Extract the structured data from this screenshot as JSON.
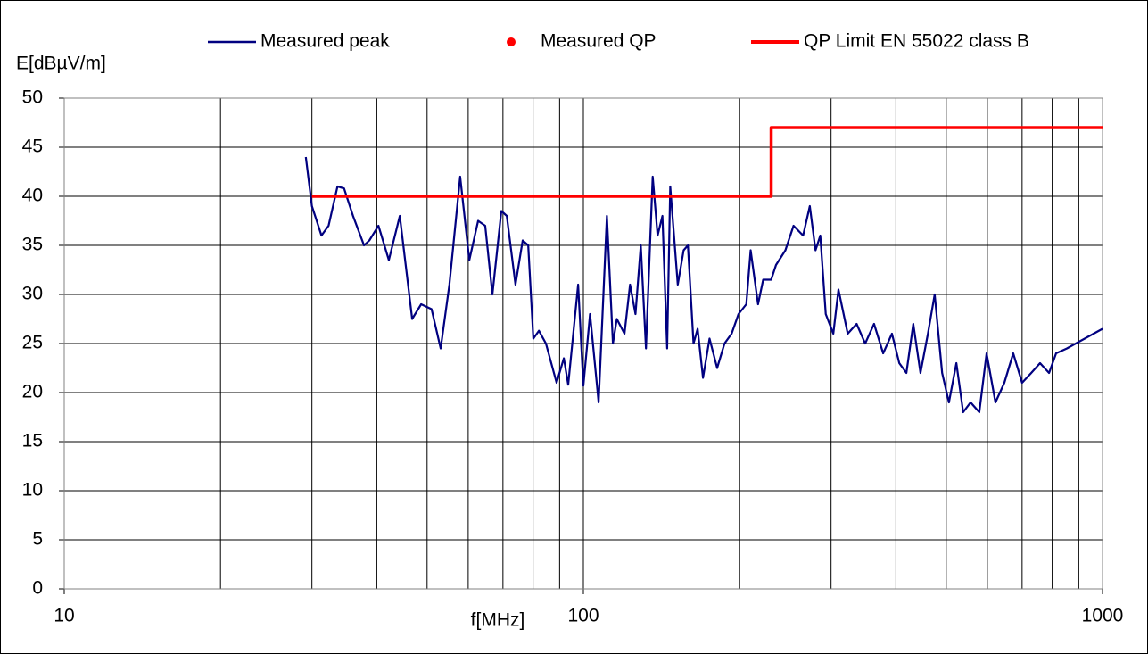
{
  "chart_data": {
    "type": "line",
    "xlabel": "f[MHz]",
    "ylabel": "E[dBµV/m]",
    "xscale": "log",
    "xlim": [
      10,
      1000
    ],
    "xticks": [
      10,
      100,
      1000
    ],
    "minor_grid": true,
    "ylim": [
      0,
      50
    ],
    "yticks": [
      0,
      5,
      10,
      15,
      20,
      25,
      30,
      35,
      40,
      45,
      50
    ],
    "grid": true,
    "legend": "top",
    "series": [
      {
        "name": "Measured peak",
        "color": "#000080",
        "mode": "line",
        "x": [
          29.2,
          30.0,
          31.3,
          32.3,
          33.6,
          34.6,
          36.0,
          37.8,
          38.7,
          40.3,
          42.2,
          44.3,
          46.8,
          48.7,
          51.0,
          53.1,
          55.2,
          57.9,
          60.3,
          62.7,
          64.7,
          66.8,
          69.5,
          71.2,
          74.0,
          76.4,
          78.3,
          80.1,
          82.1,
          84.7,
          88.8,
          91.7,
          93.5,
          97.7,
          100,
          103,
          107,
          111,
          114,
          116,
          120,
          123,
          126,
          129,
          132,
          136,
          139,
          142,
          145,
          147,
          152,
          156,
          159,
          163,
          166,
          170,
          175,
          181,
          187,
          193,
          199,
          206,
          210,
          217,
          222,
          230,
          235,
          245,
          254,
          265,
          273,
          280,
          286,
          293,
          303,
          310,
          323,
          336,
          349,
          363,
          378,
          393,
          406,
          419,
          432,
          446,
          461,
          475,
          491,
          506,
          523,
          539,
          557,
          579,
          598,
          622,
          647,
          673,
          700,
          729,
          758,
          789,
          814,
          854,
          888,
          924,
          961,
          1000
        ],
        "values": [
          44,
          39,
          36,
          37,
          41,
          40.8,
          38,
          35,
          35.5,
          37,
          33.5,
          38,
          27.5,
          29,
          28.5,
          24.5,
          31,
          42,
          33.5,
          37.5,
          37,
          30,
          38.5,
          38,
          31,
          35.5,
          35,
          25.5,
          26.3,
          25,
          21,
          23.5,
          20.8,
          31,
          20.7,
          28,
          19,
          38,
          25,
          27.5,
          26,
          31,
          28,
          35,
          24.5,
          42,
          36,
          38,
          24.5,
          41,
          31,
          34.5,
          35,
          25,
          26.5,
          21.5,
          25.5,
          22.5,
          25,
          26,
          28,
          29,
          34.5,
          29,
          31.5,
          31.5,
          33,
          34.5,
          37,
          36,
          39,
          34.5,
          36,
          28,
          26,
          30.5,
          26,
          27,
          25,
          27,
          24,
          26,
          23,
          22,
          27,
          22,
          26,
          30,
          22,
          19,
          23,
          18,
          19,
          18,
          24,
          19,
          21,
          24,
          21,
          22,
          23,
          22,
          24,
          24.5,
          25,
          25.5,
          26,
          26.5
        ]
      },
      {
        "name": "Measured QP",
        "color": "#ff0000",
        "mode": "markers",
        "x": [],
        "values": []
      },
      {
        "name": "QP Limit EN 55022 class B",
        "color": "#ff0000",
        "mode": "line",
        "x": [
          30,
          230,
          230,
          1000
        ],
        "values": [
          40,
          40,
          47,
          47
        ]
      }
    ]
  }
}
